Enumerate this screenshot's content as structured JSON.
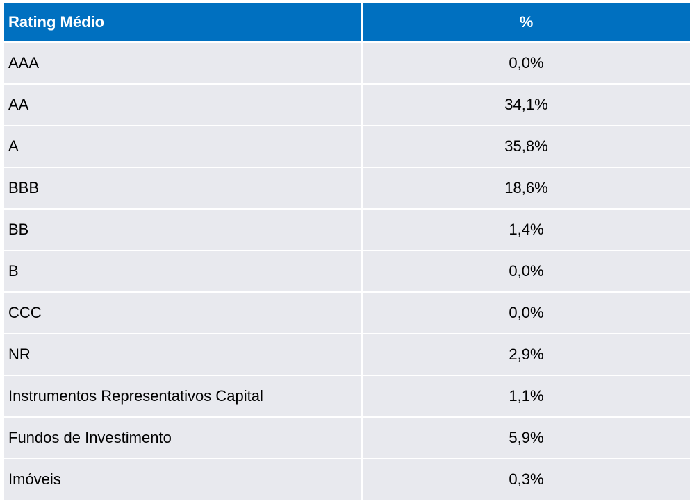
{
  "table": {
    "header": {
      "rating": "Rating Médio",
      "percent": "%"
    },
    "rows": [
      {
        "rating": "AAA",
        "percent": "0,0%"
      },
      {
        "rating": "AA",
        "percent": "34,1%"
      },
      {
        "rating": "A",
        "percent": "35,8%"
      },
      {
        "rating": "BBB",
        "percent": "18,6%"
      },
      {
        "rating": "BB",
        "percent": "1,4%"
      },
      {
        "rating": "B",
        "percent": "0,0%"
      },
      {
        "rating": "CCC",
        "percent": "0,0%"
      },
      {
        "rating": "NR",
        "percent": "2,9%"
      },
      {
        "rating": "Instrumentos Representativos Capital",
        "percent": "1,1%"
      },
      {
        "rating": "Fundos de Investimento",
        "percent": "5,9%"
      },
      {
        "rating": "Imóveis",
        "percent": "0,3%"
      }
    ]
  },
  "colors": {
    "header_bg": "#0070c0",
    "header_text": "#ffffff",
    "row_bg": "#e8e9ee",
    "row_text": "#000000"
  }
}
